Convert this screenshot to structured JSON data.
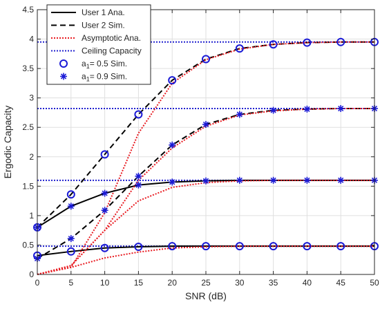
{
  "chart_data": {
    "type": "line",
    "xlabel": "SNR (dB)",
    "ylabel": "Ergodic Capacity",
    "xlim": [
      0,
      50
    ],
    "ylim": [
      0,
      4.5
    ],
    "xticks": [
      0,
      5,
      10,
      15,
      20,
      25,
      30,
      35,
      40,
      45,
      50
    ],
    "yticks": [
      0,
      0.5,
      1,
      1.5,
      2,
      2.5,
      3,
      3.5,
      4,
      4.5
    ],
    "grid": true,
    "legend_position": "top-left",
    "legend": [
      {
        "label": "User 1 Ana.",
        "kind": "line",
        "color": "#000000",
        "dash": "solid"
      },
      {
        "label": "User 2 Sim.",
        "kind": "line",
        "color": "#000000",
        "dash": "dashed"
      },
      {
        "label": "Asymptotic Ana.",
        "kind": "line",
        "color": "#e8191f",
        "dash": "dotted"
      },
      {
        "label": "Ceiling Capacity",
        "kind": "line",
        "color": "#1f1fcf",
        "dash": "dotted"
      },
      {
        "label": "a",
        "sub": "1",
        "rest": "= 0.5 Sim.",
        "kind": "marker",
        "marker": "circle",
        "color": "#1a1ad6"
      },
      {
        "label": "a",
        "sub": "1",
        "rest": "= 0.9 Sim.",
        "kind": "marker",
        "marker": "star",
        "color": "#1a1ad6"
      }
    ],
    "x": [
      0,
      5,
      10,
      15,
      20,
      25,
      30,
      35,
      40,
      45,
      50
    ],
    "series": [
      {
        "group": "a1=0.5",
        "kind": "user1-ana",
        "style": "solid",
        "color": "#000000",
        "marker": "circle",
        "values": [
          0.32,
          0.39,
          0.45,
          0.47,
          0.48,
          0.48,
          0.48,
          0.48,
          0.48,
          0.48,
          0.48
        ]
      },
      {
        "group": "a1=0.5",
        "kind": "user2-sim",
        "style": "dashed",
        "color": "#000000",
        "marker": "circle",
        "values": [
          0.8,
          1.36,
          2.04,
          2.72,
          3.3,
          3.66,
          3.84,
          3.91,
          3.94,
          3.95,
          3.95
        ]
      },
      {
        "group": "a1=0.5",
        "kind": "asymptotic-user1",
        "style": "dotted",
        "color": "#e8191f",
        "values": [
          0.0,
          0.12,
          0.28,
          0.38,
          0.45,
          0.47,
          0.48,
          0.48,
          0.48,
          0.48,
          0.48
        ]
      },
      {
        "group": "a1=0.5",
        "kind": "asymptotic-user2",
        "style": "dotted",
        "color": "#e8191f",
        "values": [
          0.0,
          0.12,
          1.05,
          2.4,
          3.25,
          3.65,
          3.83,
          3.91,
          3.94,
          3.95,
          3.95
        ]
      },
      {
        "group": "a1=0.9",
        "kind": "user1-ana",
        "style": "solid",
        "color": "#000000",
        "marker": "star",
        "values": [
          0.8,
          1.16,
          1.38,
          1.52,
          1.57,
          1.59,
          1.6,
          1.6,
          1.6,
          1.6,
          1.6
        ]
      },
      {
        "group": "a1=0.9",
        "kind": "user2-sim",
        "style": "dashed",
        "color": "#000000",
        "marker": "star",
        "values": [
          0.27,
          0.61,
          1.09,
          1.67,
          2.2,
          2.55,
          2.72,
          2.79,
          2.81,
          2.82,
          2.82
        ]
      },
      {
        "group": "a1=0.9",
        "kind": "asymptotic-user1",
        "style": "dotted",
        "color": "#e8191f",
        "values": [
          0.0,
          0.15,
          0.75,
          1.25,
          1.48,
          1.56,
          1.59,
          1.6,
          1.6,
          1.6,
          1.6
        ]
      },
      {
        "group": "a1=0.9",
        "kind": "asymptotic-user2",
        "style": "dotted",
        "color": "#e8191f",
        "values": [
          0.0,
          0.15,
          0.75,
          1.6,
          2.15,
          2.52,
          2.71,
          2.78,
          2.81,
          2.82,
          2.82
        ]
      }
    ],
    "ceilings": [
      3.95,
      2.82,
      1.6,
      0.48
    ]
  }
}
